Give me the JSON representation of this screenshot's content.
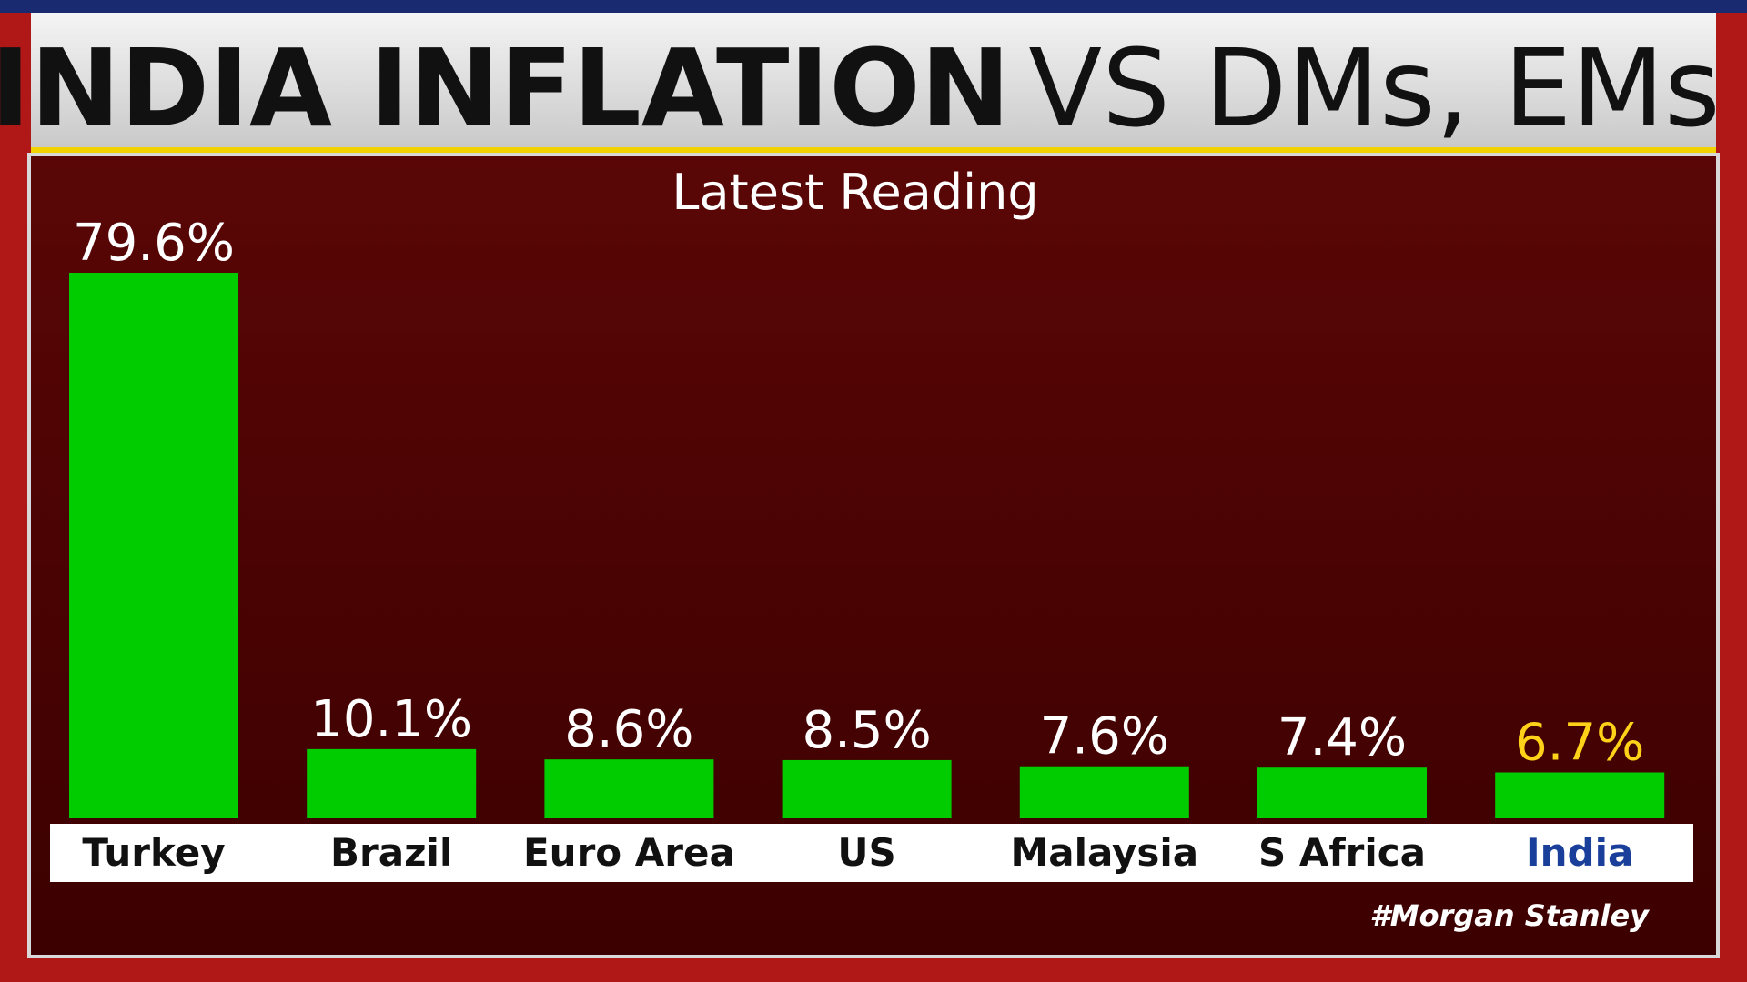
{
  "chart_data": {
    "type": "bar",
    "title_bold": "INDIA INFLATION",
    "title_light": "VS DMs, EMs",
    "subtitle": "Latest Reading",
    "source": "#Morgan Stanley",
    "categories": [
      "Turkey",
      "Brazil",
      "Euro Area",
      "US",
      "Malaysia",
      "S Africa",
      "India"
    ],
    "values": [
      79.6,
      10.1,
      8.6,
      8.5,
      7.6,
      7.4,
      6.7
    ],
    "value_labels": [
      "79.6%",
      "10.1%",
      "8.6%",
      "8.5%",
      "7.6%",
      "7.4%",
      "6.7%"
    ],
    "color": "#00cc00",
    "category_colors": [
      "#111111",
      "#111111",
      "#111111",
      "#111111",
      "#111111",
      "#111111",
      "#1a3f9a"
    ],
    "value_label_colors": [
      "#ffffff",
      "#ffffff",
      "#ffffff",
      "#ffffff",
      "#ffffff",
      "#ffffff",
      "#ffd21a"
    ]
  }
}
